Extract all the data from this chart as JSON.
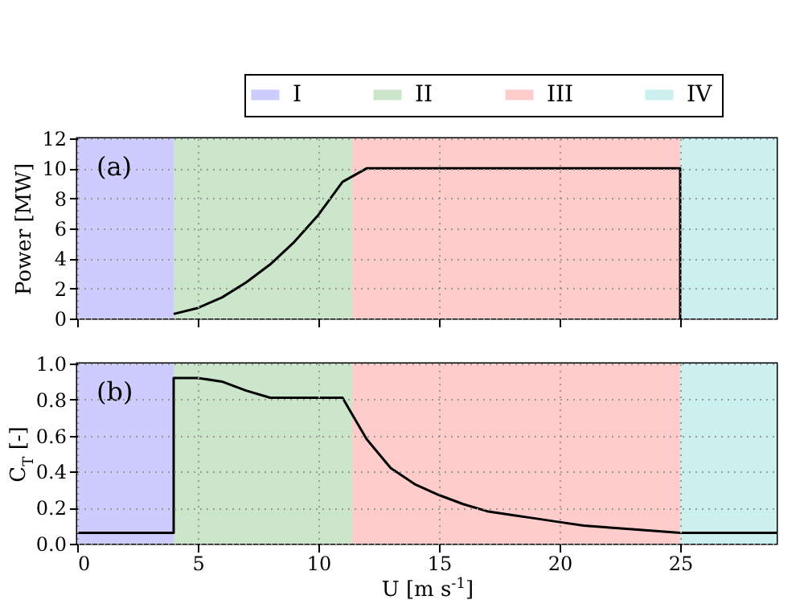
{
  "chart_data": [
    {
      "type": "line",
      "ylabel": "Power [MW]",
      "annotations": [
        "(a)"
      ],
      "xlim": [
        0,
        29
      ],
      "xticks": [
        0,
        5,
        10,
        15,
        20,
        25
      ],
      "ylim": [
        0,
        12
      ],
      "yticks": [
        0,
        2,
        4,
        6,
        8,
        10,
        12
      ],
      "tick_labels": "y",
      "grid": true,
      "legend": "top",
      "line_style": "solid",
      "series": [
        {
          "color": "#000000",
          "x": [
            4,
            5,
            6,
            7,
            8,
            9,
            10,
            11,
            12,
            15,
            25,
            25
          ],
          "values": [
            0.3,
            0.7,
            1.4,
            2.4,
            3.6,
            5.1,
            6.9,
            9.1,
            10,
            10,
            10,
            0
          ]
        }
      ],
      "bands": [
        {
          "axis": "x",
          "from": 0,
          "to": 4,
          "label": "I",
          "color": "#ccccff"
        },
        {
          "axis": "x",
          "from": 4,
          "to": 11.4,
          "label": "II",
          "color": "#cce6cc"
        },
        {
          "axis": "x",
          "from": 11.4,
          "to": 25,
          "label": "III",
          "color": "#ffcccc"
        },
        {
          "axis": "x",
          "from": 25,
          "to": 29,
          "label": "IV",
          "color": "#ccf0f0"
        }
      ]
    },
    {
      "type": "line",
      "xlabel": "U [m s$^{-1}$]",
      "ylabel": "C$_{T}$ [-]",
      "annotations": [
        "(b)"
      ],
      "xlim": [
        0,
        29
      ],
      "xticks": [
        0,
        5,
        10,
        15,
        20,
        25
      ],
      "ylim": [
        0,
        1.0
      ],
      "yticks": [
        {
          "value": 0,
          "label": "0.0"
        },
        0.2,
        0.4,
        0.6,
        0.8,
        {
          "value": 1,
          "label": "1.0"
        }
      ],
      "grid": true,
      "line_style": "solid",
      "series": [
        {
          "color": "#000000",
          "x": [
            0,
            4,
            4,
            5,
            6,
            7,
            8,
            11,
            12,
            13,
            14,
            15,
            16,
            17,
            18,
            19,
            20,
            21,
            22,
            23,
            24,
            25,
            29
          ],
          "values": [
            0.06,
            0.06,
            0.92,
            0.92,
            0.9,
            0.85,
            0.81,
            0.81,
            0.58,
            0.42,
            0.33,
            0.27,
            0.22,
            0.18,
            0.16,
            0.14,
            0.12,
            0.1,
            0.09,
            0.08,
            0.07,
            0.06,
            0.06
          ]
        }
      ],
      "bands": [
        {
          "axis": "x",
          "from": 0,
          "to": 4,
          "color": "#ccccff"
        },
        {
          "axis": "x",
          "from": 4,
          "to": 11.4,
          "color": "#cce6cc"
        },
        {
          "axis": "x",
          "from": 11.4,
          "to": 25,
          "color": "#ffcccc"
        },
        {
          "axis": "x",
          "from": 25,
          "to": 29,
          "color": "#ccf0f0"
        }
      ]
    }
  ]
}
